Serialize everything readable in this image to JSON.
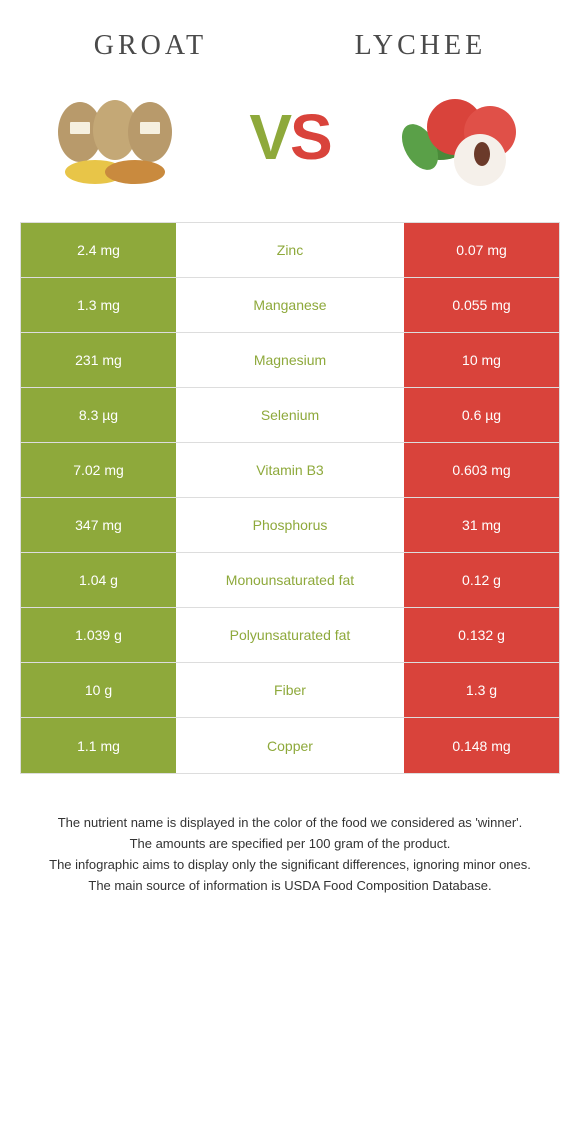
{
  "colors": {
    "left": "#8ea93b",
    "right": "#d9433b",
    "border": "#dddddd"
  },
  "header": {
    "left_title": "GROAT",
    "right_title": "LYCHEE"
  },
  "vs": {
    "v": "V",
    "s": "S"
  },
  "rows": [
    {
      "left": "2.4 mg",
      "label": "Zinc",
      "right": "0.07 mg",
      "winner": "left"
    },
    {
      "left": "1.3 mg",
      "label": "Manganese",
      "right": "0.055 mg",
      "winner": "left"
    },
    {
      "left": "231 mg",
      "label": "Magnesium",
      "right": "10 mg",
      "winner": "left"
    },
    {
      "left": "8.3 µg",
      "label": "Selenium",
      "right": "0.6 µg",
      "winner": "left"
    },
    {
      "left": "7.02 mg",
      "label": "Vitamin B3",
      "right": "0.603 mg",
      "winner": "left"
    },
    {
      "left": "347 mg",
      "label": "Phosphorus",
      "right": "31 mg",
      "winner": "left"
    },
    {
      "left": "1.04 g",
      "label": "Monounsaturated fat",
      "right": "0.12 g",
      "winner": "left"
    },
    {
      "left": "1.039 g",
      "label": "Polyunsaturated fat",
      "right": "0.132 g",
      "winner": "left"
    },
    {
      "left": "10 g",
      "label": "Fiber",
      "right": "1.3 g",
      "winner": "left"
    },
    {
      "left": "1.1 mg",
      "label": "Copper",
      "right": "0.148 mg",
      "winner": "left"
    }
  ],
  "footnote": {
    "l1": "The nutrient name is displayed in the color of the food we considered as 'winner'.",
    "l2": "The amounts are specified per 100 gram of the product.",
    "l3": "The infographic aims to display only the significant differences, ignoring minor ones.",
    "l4": "The main source of information is USDA Food Composition Database."
  }
}
